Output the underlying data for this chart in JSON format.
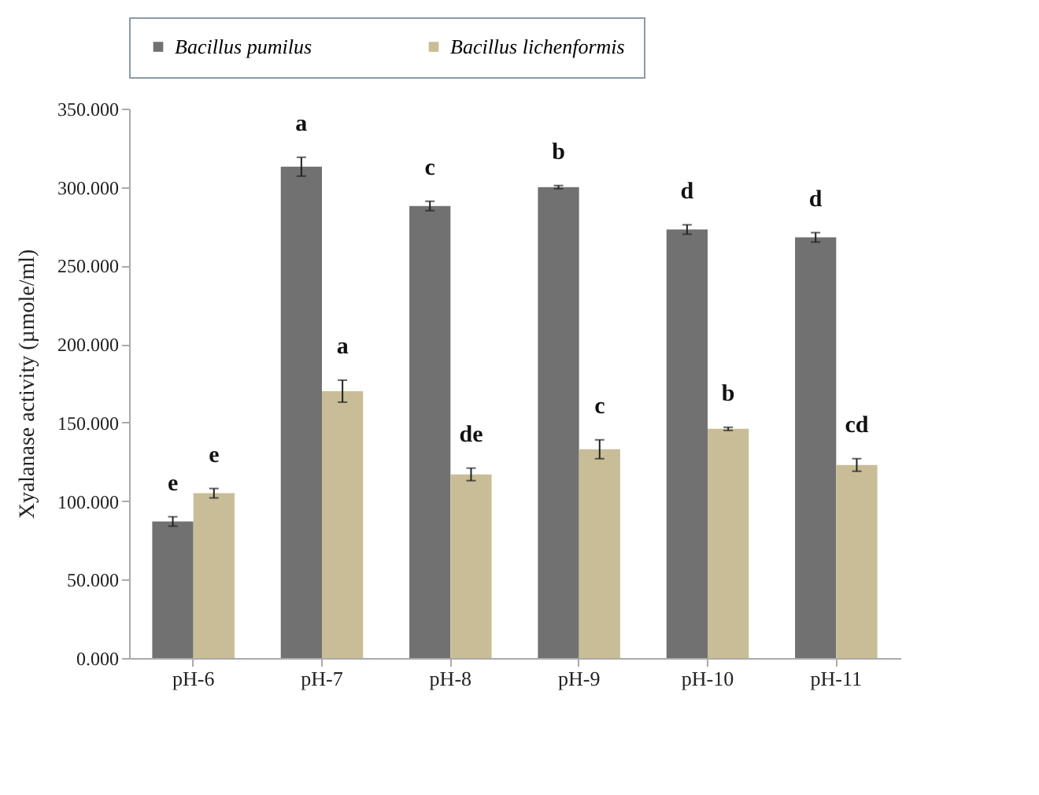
{
  "chart_data": {
    "type": "bar",
    "ylabel": "Xyalanase activity  (µmole/ml)",
    "categories": [
      "pH-6",
      "pH-7",
      "pH-8",
      "pH-9",
      "pH-10",
      "pH-11"
    ],
    "series": [
      {
        "name": "Bacillus pumilus",
        "color": "#717171",
        "values": [
          87,
          313,
          288,
          300,
          273,
          268
        ],
        "errors": [
          3,
          6,
          3,
          1,
          3,
          3
        ],
        "value_labels": [
          "e",
          "a",
          "c",
          "b",
          "d",
          "d"
        ]
      },
      {
        "name": "Bacillus lichenformis",
        "color": "#c8bd96",
        "values": [
          105,
          170,
          117,
          133,
          146,
          123
        ],
        "errors": [
          3,
          7,
          4,
          6,
          1,
          4
        ],
        "value_labels": [
          "e",
          "a",
          "de",
          "c",
          "b",
          "cd"
        ]
      }
    ],
    "ylim": [
      0,
      350
    ],
    "yticks": [
      {
        "value": 0,
        "label": "0.000"
      },
      {
        "value": 50,
        "label": "50.000"
      },
      {
        "value": 100,
        "label": "100.000"
      },
      {
        "value": 150,
        "label": "150.000"
      },
      {
        "value": 200,
        "label": "200.000"
      },
      {
        "value": 250,
        "label": "250.000"
      },
      {
        "value": 300,
        "label": "300.000"
      },
      {
        "value": 350,
        "label": "350.000"
      }
    ],
    "legend": "top"
  }
}
